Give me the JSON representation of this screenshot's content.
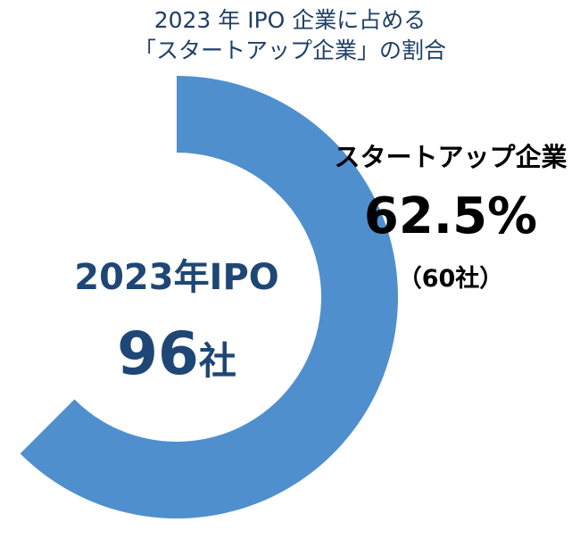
{
  "title": {
    "line1": "2023 年 IPO 企業に占める",
    "line2": "「スタートアップ企業」の割合"
  },
  "chart_data": {
    "type": "pie",
    "variant": "donut",
    "center": {
      "title": "2023年IPO",
      "value": "96",
      "unit": "社"
    },
    "total": 96,
    "slices": [
      {
        "name": "スタートアップ企業",
        "value": 60,
        "percent_label": "62.5%",
        "count_label": "（60社）",
        "color": "#4f8fcd"
      }
    ]
  }
}
